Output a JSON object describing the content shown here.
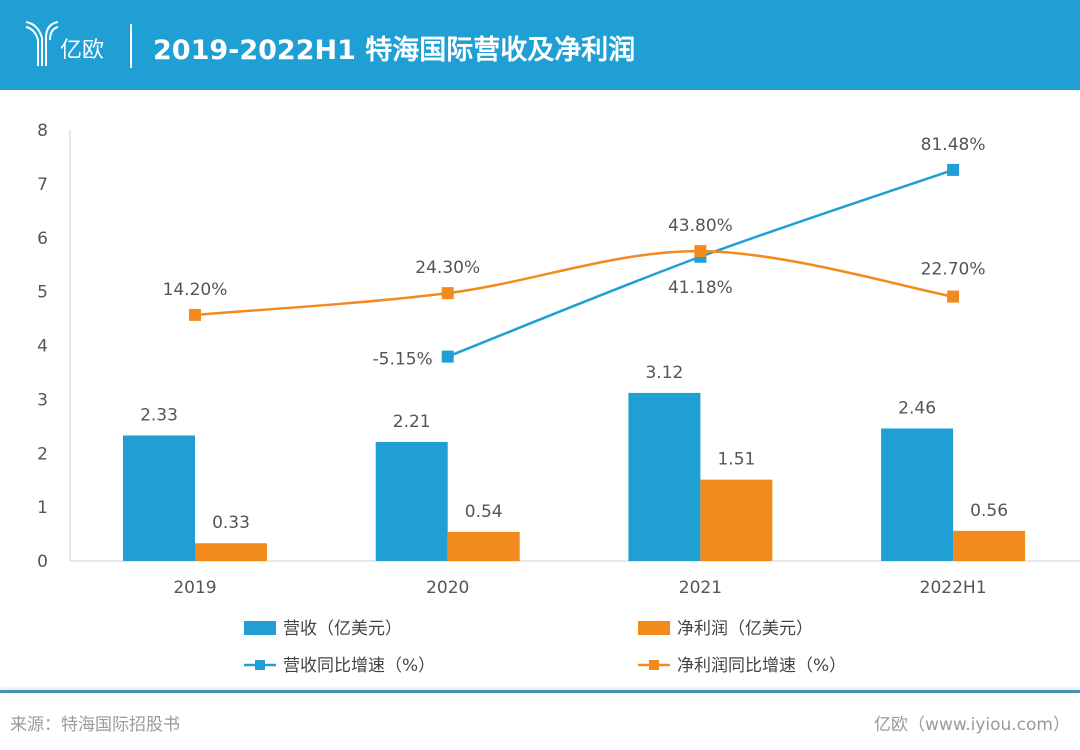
{
  "header": {
    "logo_text": "亿欧",
    "title": "2019-2022H1 特海国际营收及净利润"
  },
  "footer": {
    "source": "来源：特海国际招股书",
    "credit": "亿欧（www.iyiou.com）"
  },
  "chart_data": {
    "type": "bar+line",
    "categories": [
      "2019",
      "2020",
      "2021",
      "2022H1"
    ],
    "ylim": [
      0,
      8
    ],
    "yticks": [
      0,
      1,
      2,
      3,
      4,
      5,
      6,
      7,
      8
    ],
    "secondary_ylim_percent": [
      -100,
      100
    ],
    "secondary_axis_visible": false,
    "grid": false,
    "legend_position": "bottom",
    "colors": {
      "revenue": "#1f9fd4",
      "profit": "#f28a1e"
    },
    "bars": [
      {
        "name": "营收（亿美元）",
        "values": [
          2.33,
          2.21,
          3.12,
          2.46
        ],
        "labels": [
          "2.33",
          "2.21",
          "3.12",
          "2.46"
        ]
      },
      {
        "name": "净利润（亿美元）",
        "values": [
          0.33,
          0.54,
          1.51,
          0.56
        ],
        "labels": [
          "0.33",
          "0.54",
          "1.51",
          "0.56"
        ]
      }
    ],
    "lines": [
      {
        "name": "营收同比增速（%）",
        "values": [
          null,
          -5.15,
          41.18,
          81.48
        ],
        "labels": [
          "",
          "-5.15%",
          "41.18%",
          "81.48%"
        ]
      },
      {
        "name": "净利润同比增速（%）",
        "values": [
          14.2,
          24.3,
          43.8,
          22.7
        ],
        "labels": [
          "14.20%",
          "24.30%",
          "43.80%",
          "22.70%"
        ]
      }
    ]
  }
}
